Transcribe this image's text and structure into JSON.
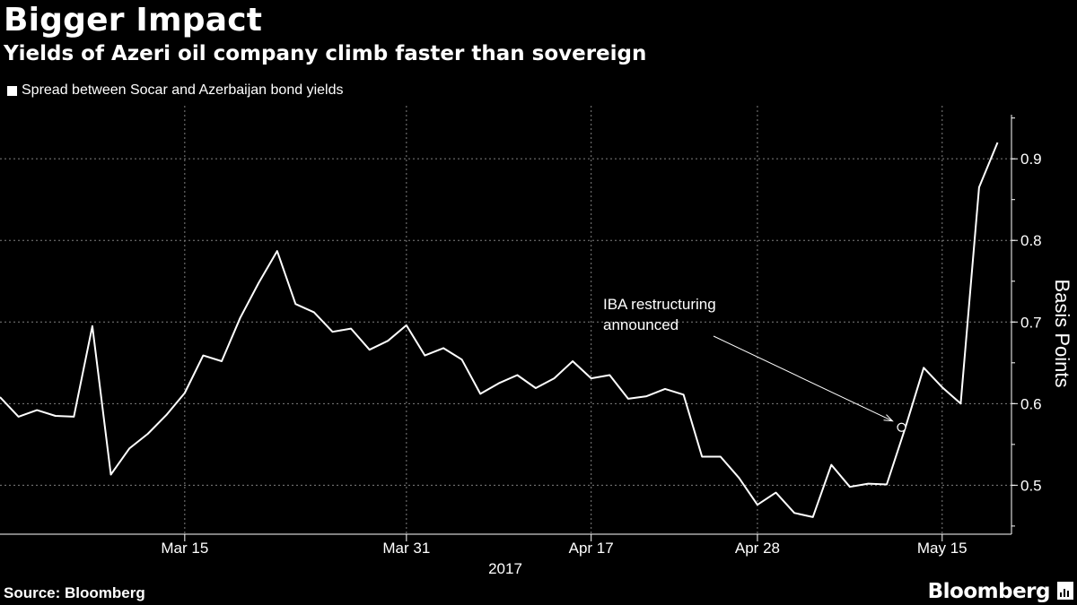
{
  "header": {
    "title": "Bigger Impact",
    "subtitle": "Yields of Azeri oil company climb faster than sovereign"
  },
  "footer": {
    "source": "Source: Bloomberg",
    "brand": "Bloomberg"
  },
  "colors": {
    "background": "#000000",
    "line": "#ffffff",
    "grid": "#808080"
  },
  "chart_data": {
    "type": "line",
    "title": "Bigger Impact",
    "subtitle": "Yields of Azeri oil company climb faster than sovereign",
    "xlabel": "2017",
    "ylabel": "Basis Points",
    "ylim": [
      0.44,
      0.965
    ],
    "xlim": [
      0,
      54.8
    ],
    "yticks": [
      0.5,
      0.6,
      0.7,
      0.8,
      0.9
    ],
    "ytick_labels": [
      "0.5",
      "0.6",
      "0.7",
      "0.8",
      "0.9"
    ],
    "xticks": [
      {
        "label": "Mar 15",
        "index": 10
      },
      {
        "label": "Mar 31",
        "index": 22
      },
      {
        "label": "Apr 17",
        "index": 32
      },
      {
        "label": "Apr 28",
        "index": 41
      },
      {
        "label": "May 15",
        "index": 51
      }
    ],
    "year_label": "2017",
    "grid": true,
    "legend": "top-left",
    "series": [
      {
        "name": "Spread between Socar and Azerbaijan bond yields",
        "values": [
          0.608,
          0.584,
          0.592,
          0.585,
          0.584,
          0.695,
          0.513,
          0.545,
          0.563,
          0.586,
          0.613,
          0.659,
          0.652,
          0.705,
          0.748,
          0.787,
          0.722,
          0.712,
          0.688,
          0.692,
          0.666,
          0.677,
          0.696,
          0.659,
          0.668,
          0.654,
          0.612,
          0.625,
          0.635,
          0.619,
          0.631,
          0.652,
          0.631,
          0.635,
          0.606,
          0.609,
          0.618,
          0.611,
          0.535,
          0.535,
          0.509,
          0.476,
          0.491,
          0.466,
          0.461,
          0.525,
          0.498,
          0.502,
          0.501,
          0.57,
          0.644,
          0.62,
          0.6,
          0.865,
          0.92
        ]
      }
    ],
    "annotations": [
      {
        "text_lines": [
          "IBA restructuring",
          "announced"
        ],
        "target_index": 48.8,
        "target_value": 0.571
      }
    ]
  }
}
